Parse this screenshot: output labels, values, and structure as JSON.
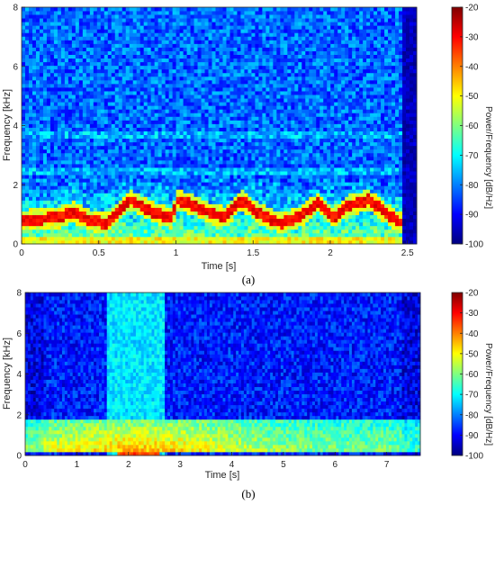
{
  "chart_data": [
    {
      "type": "heatmap",
      "subplot_label": "(a)",
      "xlabel": "Time [s]",
      "ylabel": "Frequency [kHz]",
      "xlim": [
        0,
        2.56
      ],
      "ylim": [
        0,
        8
      ],
      "xticks": [
        0,
        0.5,
        1,
        1.5,
        2,
        2.5
      ],
      "xtick_labels": [
        "0",
        "0.5",
        "1",
        "1.5",
        "2",
        "2.5"
      ],
      "yticks": [
        0,
        2,
        4,
        6,
        8
      ],
      "ytick_labels": [
        "0",
        "2",
        "4",
        "6",
        "8"
      ],
      "colorbar": {
        "label": "Power/Frequency [dB/Hz]",
        "range": [
          -100,
          -20
        ],
        "ticks": [
          -20,
          -30,
          -40,
          -50,
          -60,
          -70,
          -80,
          -90,
          -100
        ],
        "tick_labels": [
          "-20",
          "-30",
          "-40",
          "-50",
          "-60",
          "-70",
          "-80",
          "-90",
          "-100"
        ],
        "colormap": "jet"
      },
      "colormap_stops": [
        "#00007f",
        "#0000ff",
        "#007fff",
        "#00ffff",
        "#7fff7f",
        "#ffff00",
        "#ff7f00",
        "#ff0000",
        "#7f0000"
      ],
      "dominant_trace": {
        "time_s": [
          0.0,
          0.25,
          0.33,
          0.45,
          0.55,
          0.7,
          0.85,
          0.98,
          1.0,
          1.1,
          1.2,
          1.32,
          1.42,
          1.55,
          1.68,
          1.8,
          1.92,
          2.02,
          2.12,
          2.25,
          2.4,
          2.5
        ],
        "freq_khz": [
          0.8,
          0.9,
          1.1,
          0.8,
          0.7,
          1.5,
          1.1,
          0.85,
          1.5,
          1.35,
          1.1,
          0.9,
          1.5,
          1.0,
          0.7,
          0.9,
          1.4,
          0.9,
          1.3,
          1.5,
          0.9,
          0.6
        ],
        "level_db": -30
      },
      "background_level_db": -82,
      "low_band_level_db": -60,
      "silence_after_s": 2.46
    },
    {
      "type": "heatmap",
      "subplot_label": "(b)",
      "xlabel": "Time [s]",
      "ylabel": "Frequency [kHz]",
      "xlim": [
        0,
        7.65
      ],
      "ylim": [
        0,
        8
      ],
      "xticks": [
        0,
        1,
        2,
        3,
        4,
        5,
        6,
        7
      ],
      "xtick_labels": [
        "0",
        "1",
        "2",
        "3",
        "4",
        "5",
        "6",
        "7"
      ],
      "yticks": [
        0,
        2,
        4,
        6,
        8
      ],
      "ytick_labels": [
        "0",
        "2",
        "4",
        "6",
        "8"
      ],
      "colorbar": {
        "label": "Power/Frequency [dB/Hz]",
        "range": [
          -100,
          -20
        ],
        "ticks": [
          -20,
          -30,
          -40,
          -50,
          -60,
          -70,
          -80,
          -90,
          -100
        ],
        "tick_labels": [
          "-20",
          "-30",
          "-40",
          "-50",
          "-60",
          "-70",
          "-80",
          "-90",
          "-100"
        ],
        "colormap": "jet"
      },
      "colormap_stops": [
        "#00007f",
        "#0000ff",
        "#007fff",
        "#00ffff",
        "#7fff7f",
        "#ffff00",
        "#ff7f00",
        "#ff0000",
        "#7f0000"
      ],
      "broadband_burst": {
        "time_s": [
          1.6,
          2.7
        ],
        "level_db": -72
      },
      "low_band": {
        "freq_khz": [
          0.2,
          1.8
        ],
        "peak_time_s": 2.2,
        "peak_level_db": -45
      },
      "background_level_db": -88
    }
  ]
}
